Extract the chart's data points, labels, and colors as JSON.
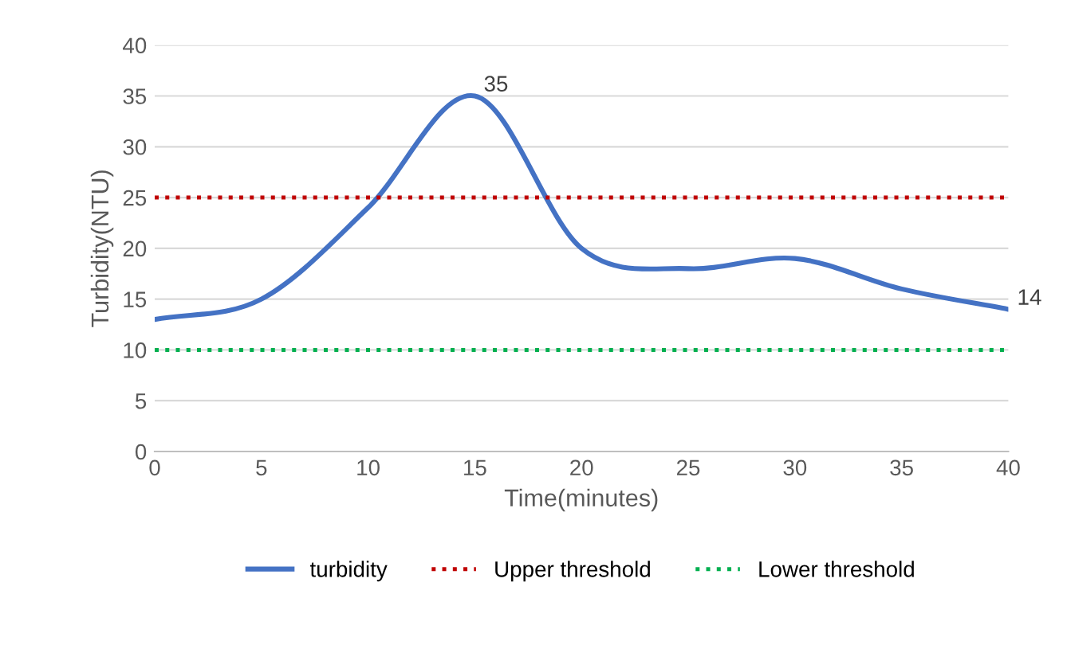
{
  "chart_data": {
    "type": "line",
    "xlabel": "Time(minutes)",
    "ylabel": "Turbidity(NTU)",
    "x": [
      0,
      5,
      10,
      15,
      20,
      25,
      30,
      35,
      40
    ],
    "series": [
      {
        "name": "turbidity",
        "color": "#4472c4",
        "values": [
          13,
          15,
          24,
          35,
          20,
          18,
          19,
          16,
          14
        ],
        "line_style": "solid",
        "value_labels": [
          null,
          null,
          null,
          "35",
          null,
          null,
          null,
          null,
          "14"
        ]
      },
      {
        "name": "Upper threshold",
        "color": "#c00000",
        "values": [
          25,
          25,
          25,
          25,
          25,
          25,
          25,
          25,
          25
        ],
        "line_style": "dotted"
      },
      {
        "name": "Lower threshold",
        "color": "#00b050",
        "values": [
          10,
          10,
          10,
          10,
          10,
          10,
          10,
          10,
          10
        ],
        "line_style": "dotted"
      }
    ],
    "xlim": [
      0,
      40
    ],
    "xticks": [
      0,
      5,
      10,
      15,
      20,
      25,
      30,
      35,
      40
    ],
    "ylim": [
      0,
      40
    ],
    "yticks": [
      0,
      5,
      10,
      15,
      20,
      25,
      30,
      35,
      40
    ],
    "grid": "y",
    "legend": "bottom",
    "marker": "none"
  }
}
